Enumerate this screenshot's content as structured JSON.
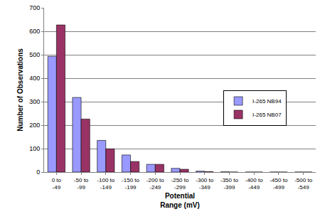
{
  "chart_data": {
    "type": "bar",
    "x_label": "Potential Range (mV)",
    "y_label": "Number of Observations",
    "categories": [
      "0 to -49",
      "-50 to -99",
      "-100 to -149",
      "-150 to -199",
      "-200 to -249",
      "-250 to -299",
      "-300 to -349",
      "-350 to -399",
      "-400 to -449",
      "-450 to -499",
      "-500 to -549"
    ],
    "series": [
      {
        "name": "I-265 NB94",
        "color": "#9999ff",
        "values": [
          493,
          318,
          135,
          73,
          33,
          16,
          4,
          1,
          0,
          0,
          0
        ]
      },
      {
        "name": "I-265 NB07",
        "color": "#993366",
        "values": [
          627,
          226,
          99,
          45,
          33,
          12,
          2,
          0,
          0,
          0,
          0
        ]
      }
    ],
    "ylim": [
      0,
      700
    ],
    "yticks": [
      0,
      100,
      200,
      300,
      400,
      500,
      600,
      700
    ],
    "grid": true,
    "legend": "right"
  }
}
